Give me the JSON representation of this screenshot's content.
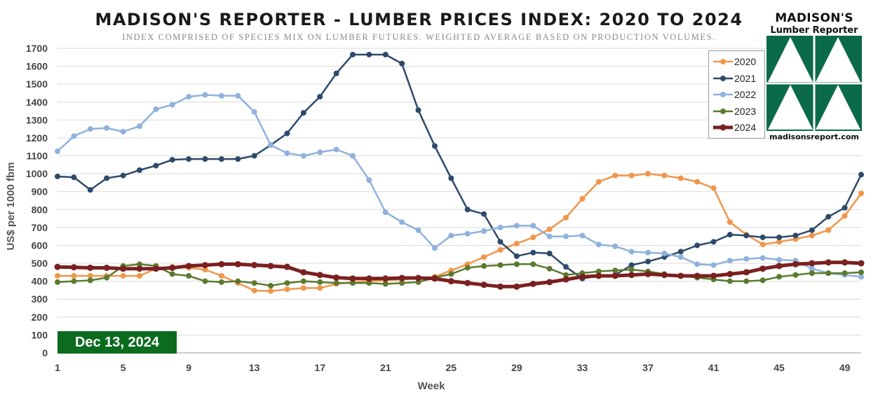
{
  "header": {
    "title": "MADISON'S REPORTER - LUMBER PRICES INDEX: 2020 TO 2024",
    "subtitle": "INDEX COMPRISED OF SPECIES MIX ON LUMBER FUTURES. WEIGHTED AVERAGE BASED ON PRODUCTION VOLUMES."
  },
  "logo": {
    "name": "MADISON'S",
    "sub": "Lumber Reporter",
    "site": "madisonsreport.com",
    "icon": "tree-logo-icon",
    "color": "#0b6b48"
  },
  "badge": {
    "label": "Dec 13, 2024",
    "color": "#0b6b1e"
  },
  "chart_data": {
    "type": "line",
    "title": "MADISON'S REPORTER - LUMBER PRICES INDEX: 2020 TO 2024",
    "xlabel": "Week",
    "ylabel": "US$ per 1000 fbm",
    "xlim": [
      1,
      50
    ],
    "ylim": [
      0,
      1700
    ],
    "xticks": [
      1,
      5,
      9,
      13,
      17,
      21,
      25,
      29,
      33,
      37,
      41,
      45,
      49
    ],
    "yticks": [
      0,
      100,
      200,
      300,
      400,
      500,
      600,
      700,
      800,
      900,
      1000,
      1100,
      1200,
      1300,
      1400,
      1500,
      1600,
      1700
    ],
    "grid": "horizontal",
    "legend_position": "top-right",
    "x": [
      1,
      2,
      3,
      4,
      5,
      6,
      7,
      8,
      9,
      10,
      11,
      12,
      13,
      14,
      15,
      16,
      17,
      18,
      19,
      20,
      21,
      22,
      23,
      24,
      25,
      26,
      27,
      28,
      29,
      30,
      31,
      32,
      33,
      34,
      35,
      36,
      37,
      38,
      39,
      40,
      41,
      42,
      43,
      44,
      45,
      46,
      47,
      48,
      49,
      50
    ],
    "series": [
      {
        "name": "2020",
        "color": "#f0964a",
        "width": 2.5,
        "values": [
          430,
          430,
          430,
          430,
          430,
          430,
          470,
          480,
          475,
          465,
          430,
          390,
          348,
          345,
          355,
          362,
          362,
          385,
          395,
          400,
          405,
          410,
          415,
          425,
          460,
          495,
          535,
          575,
          610,
          645,
          690,
          755,
          860,
          955,
          990,
          990,
          1000,
          990,
          975,
          955,
          920,
          730,
          660,
          605,
          620,
          635,
          655,
          685,
          765,
          890
        ]
      },
      {
        "name": "2021",
        "color": "#2e4a6b",
        "width": 2.5,
        "values": [
          985,
          980,
          910,
          975,
          990,
          1020,
          1045,
          1078,
          1082,
          1082,
          1082,
          1082,
          1100,
          1160,
          1225,
          1340,
          1430,
          1560,
          1665,
          1665,
          1665,
          1615,
          1355,
          1155,
          975,
          800,
          775,
          620,
          540,
          560,
          555,
          480,
          415,
          430,
          435,
          490,
          510,
          535,
          565,
          600,
          620,
          660,
          655,
          645,
          645,
          655,
          685,
          760,
          810,
          995
        ]
      },
      {
        "name": "2022",
        "color": "#8fb2dc",
        "width": 2.5,
        "values": [
          1125,
          1210,
          1250,
          1255,
          1235,
          1265,
          1360,
          1385,
          1430,
          1440,
          1435,
          1435,
          1345,
          1160,
          1115,
          1100,
          1120,
          1135,
          1100,
          965,
          785,
          730,
          685,
          585,
          655,
          665,
          680,
          700,
          710,
          710,
          650,
          650,
          655,
          605,
          595,
          565,
          560,
          555,
          535,
          495,
          490,
          515,
          525,
          530,
          520,
          515,
          470,
          445,
          435,
          425
        ]
      },
      {
        "name": "2023",
        "color": "#5b7a2e",
        "width": 2.5,
        "values": [
          395,
          400,
          405,
          420,
          485,
          495,
          485,
          440,
          430,
          400,
          395,
          400,
          390,
          375,
          390,
          400,
          395,
          390,
          390,
          390,
          385,
          390,
          395,
          420,
          440,
          475,
          485,
          490,
          495,
          495,
          470,
          435,
          445,
          455,
          460,
          465,
          455,
          440,
          430,
          420,
          410,
          400,
          400,
          405,
          425,
          435,
          445,
          445,
          445,
          450
        ]
      },
      {
        "name": "2024",
        "color": "#7a2020",
        "width": 5,
        "values": [
          480,
          478,
          475,
          475,
          470,
          470,
          470,
          475,
          485,
          490,
          495,
          495,
          490,
          485,
          480,
          450,
          435,
          420,
          415,
          415,
          415,
          418,
          418,
          415,
          400,
          390,
          380,
          370,
          370,
          385,
          395,
          410,
          425,
          430,
          430,
          435,
          440,
          435,
          430,
          430,
          430,
          440,
          450,
          470,
          485,
          495,
          500,
          505,
          505,
          500
        ]
      }
    ]
  }
}
